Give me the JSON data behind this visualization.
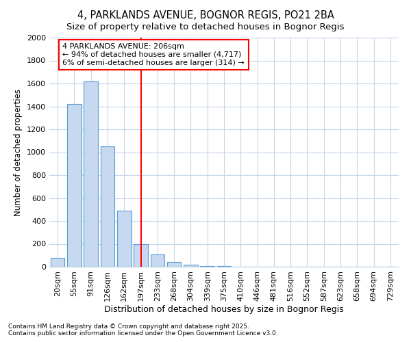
{
  "title_line1": "4, PARKLANDS AVENUE, BOGNOR REGIS, PO21 2BA",
  "title_line2": "Size of property relative to detached houses in Bognor Regis",
  "xlabel": "Distribution of detached houses by size in Bognor Regis",
  "ylabel": "Number of detached properties",
  "categories": [
    "20sqm",
    "55sqm",
    "91sqm",
    "126sqm",
    "162sqm",
    "197sqm",
    "233sqm",
    "268sqm",
    "304sqm",
    "339sqm",
    "375sqm",
    "410sqm",
    "446sqm",
    "481sqm",
    "516sqm",
    "552sqm",
    "587sqm",
    "623sqm",
    "658sqm",
    "694sqm",
    "729sqm"
  ],
  "values": [
    80,
    1420,
    1620,
    1050,
    490,
    200,
    110,
    40,
    20,
    5,
    3,
    2,
    0,
    0,
    0,
    0,
    0,
    0,
    0,
    0,
    0
  ],
  "bar_color": "#c6d9f0",
  "bar_edge_color": "#5b9bd5",
  "vline_x": 5,
  "vline_color": "red",
  "annotation_text": "4 PARKLANDS AVENUE: 206sqm\n← 94% of detached houses are smaller (4,717)\n6% of semi-detached houses are larger (314) →",
  "annotation_box_color": "white",
  "annotation_box_edge": "red",
  "ylim": [
    0,
    2000
  ],
  "yticks": [
    0,
    200,
    400,
    600,
    800,
    1000,
    1200,
    1400,
    1600,
    1800,
    2000
  ],
  "footnote1": "Contains HM Land Registry data © Crown copyright and database right 2025.",
  "footnote2": "Contains public sector information licensed under the Open Government Licence v3.0.",
  "bg_color": "#ffffff",
  "grid_color": "#c5d5e8",
  "title_fontsize": 10.5,
  "subtitle_fontsize": 9.5,
  "tick_fontsize": 8,
  "xlabel_fontsize": 9,
  "ylabel_fontsize": 8.5,
  "footnote_fontsize": 6.5
}
